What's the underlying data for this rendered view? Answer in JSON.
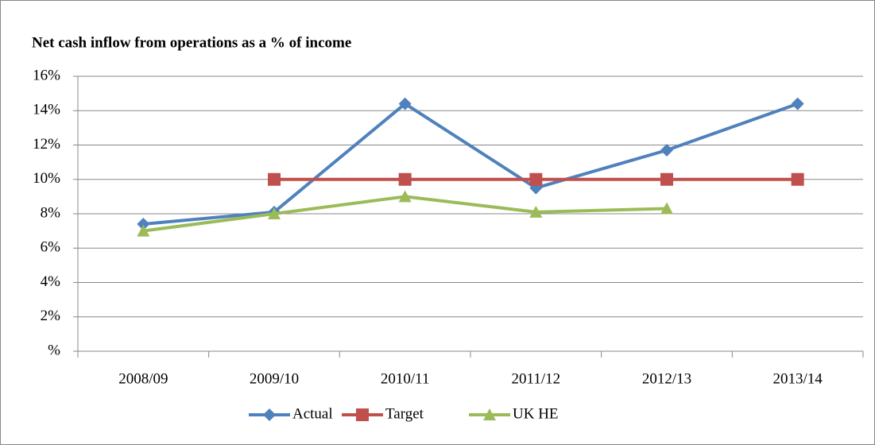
{
  "chart_data": {
    "type": "line",
    "title": "Net cash inflow from operations as a % of income",
    "categories": [
      "2008/09",
      "2009/10",
      "2010/11",
      "2011/12",
      "2012/13",
      "2013/14"
    ],
    "series": [
      {
        "name": "Actual",
        "color": "#4f81bd",
        "marker": "diamond",
        "values": [
          7.4,
          8.1,
          14.4,
          9.5,
          11.7,
          14.4
        ]
      },
      {
        "name": "Target",
        "color": "#c0504d",
        "marker": "square",
        "values": [
          null,
          10,
          10,
          10,
          10,
          10
        ]
      },
      {
        "name": "UK HE",
        "color": "#9bbb59",
        "marker": "triangle",
        "values": [
          7.0,
          8.0,
          9.0,
          8.1,
          8.3,
          null
        ]
      }
    ],
    "ylim": [
      0,
      16
    ],
    "yticks": [
      {
        "value": 0,
        "label": "%"
      },
      {
        "value": 2,
        "label": "2%"
      },
      {
        "value": 4,
        "label": "4%"
      },
      {
        "value": 6,
        "label": "6%"
      },
      {
        "value": 8,
        "label": "8%"
      },
      {
        "value": 10,
        "label": "10%"
      },
      {
        "value": 12,
        "label": "12%"
      },
      {
        "value": 14,
        "label": "14%"
      },
      {
        "value": 16,
        "label": "16%"
      }
    ],
    "grid": true,
    "legend": "bottom"
  }
}
